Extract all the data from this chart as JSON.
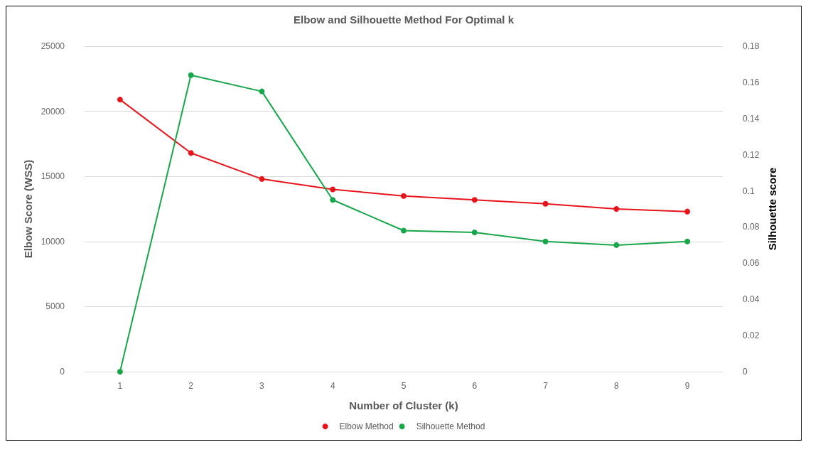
{
  "chart_data": {
    "type": "line",
    "title": "Elbow and Silhouette Method For Optimal k",
    "xlabel": "Number of Cluster (k)",
    "ylabel": "Elbow Score (WSS)",
    "y2label": "Silhouette score",
    "categories": [
      "1",
      "2",
      "3",
      "4",
      "5",
      "6",
      "7",
      "8",
      "9"
    ],
    "series": [
      {
        "name": "Elbow Method",
        "color": "#e8141b",
        "values": [
          20900,
          16800,
          14800,
          14000,
          13500,
          13200,
          12900,
          12500,
          12300
        ]
      },
      {
        "name": "Silhouette Method",
        "color": "#18a64a",
        "axis": "y2",
        "values": [
          0,
          0.164,
          0.155,
          0.095,
          0.078,
          0.077,
          0.072,
          0.07,
          0.072
        ]
      }
    ],
    "ylim": [
      0,
      25000
    ],
    "yticks": [
      0,
      5000,
      10000,
      15000,
      20000,
      25000
    ],
    "y2lim": [
      0,
      0.18
    ],
    "y2ticks": [
      0,
      0.02,
      0.04,
      0.06,
      0.08,
      0.1,
      0.12,
      0.14,
      0.16,
      0.18
    ],
    "grid": "y",
    "legend": "bottom",
    "marker": "circle",
    "line_style": "solid"
  }
}
